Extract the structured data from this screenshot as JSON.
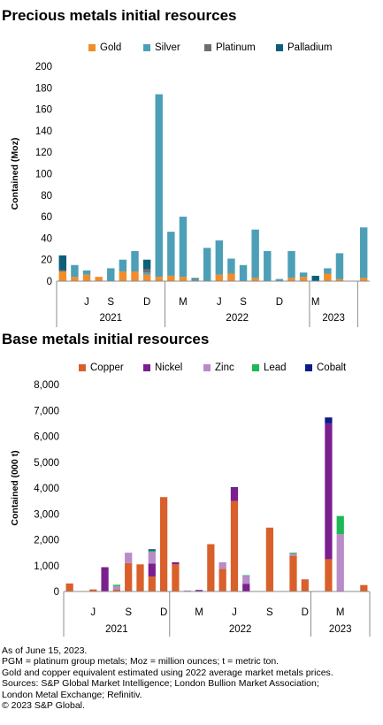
{
  "colors": {
    "Gold": "#F28C28",
    "Silver": "#4D9FB8",
    "Platinum": "#6E6E6E",
    "Palladium": "#0B5F7A",
    "Copper": "#D9602A",
    "Nickel": "#7B1E8E",
    "Zinc": "#B98BC8",
    "Lead": "#1DB954",
    "Cobalt": "#0A1C8A"
  },
  "chart_data": [
    {
      "type": "bar",
      "stacked": true,
      "title": "Precious metals initial resources",
      "ylabel": "Contained (Moz)",
      "xlabel": "",
      "ylim": [
        0,
        200
      ],
      "yticks": [
        "0",
        "20",
        "40",
        "60",
        "80",
        "100",
        "120",
        "140",
        "160",
        "180",
        "200"
      ],
      "grid": false,
      "legend_position": "top",
      "month_ticks": [
        {
          "label": "J",
          "index": 2
        },
        {
          "label": "S",
          "index": 4
        },
        {
          "label": "D",
          "index": 7
        },
        {
          "label": "M",
          "index": 10
        },
        {
          "label": "J",
          "index": 13
        },
        {
          "label": "S",
          "index": 15
        },
        {
          "label": "D",
          "index": 18
        },
        {
          "label": "M",
          "index": 21
        }
      ],
      "year_groups": [
        {
          "label": "2021",
          "start": 0,
          "end": 8
        },
        {
          "label": "2022",
          "start": 9,
          "end": 20
        },
        {
          "label": "2023",
          "start": 21,
          "end": 24
        }
      ],
      "categories": [
        "2021-04",
        "2021-05",
        "2021-06",
        "2021-07",
        "2021-08",
        "2021-09",
        "2021-10",
        "2021-11",
        "2021-12",
        "2022-01",
        "2022-02",
        "2022-03",
        "2022-04",
        "2022-05",
        "2022-06",
        "2022-07",
        "2022-08",
        "2022-09",
        "2022-10",
        "2022-11",
        "2022-12",
        "2023-01",
        "2023-02",
        "2023-03",
        "2023-04",
        "2023-05"
      ],
      "series": [
        {
          "name": "Gold",
          "values": [
            9,
            4,
            6,
            4,
            0,
            9,
            9,
            6,
            4,
            5,
            4,
            0,
            0,
            6,
            7,
            0,
            3,
            0,
            0,
            3,
            4,
            0,
            7,
            2,
            0,
            3
          ]
        },
        {
          "name": "Silver",
          "values": [
            0,
            11,
            4,
            0,
            12,
            11,
            19,
            2,
            170,
            41,
            56,
            2,
            31,
            32,
            14,
            15,
            45,
            28,
            2,
            25,
            4,
            0,
            5,
            24,
            0,
            47
          ]
        },
        {
          "name": "Platinum",
          "values": [
            1,
            0,
            0,
            0,
            0,
            0,
            0,
            3,
            0,
            0,
            0,
            1,
            0,
            0,
            0,
            0,
            0,
            0,
            0,
            0,
            0,
            0,
            0,
            0,
            0,
            0
          ]
        },
        {
          "name": "Palladium",
          "values": [
            14,
            0,
            0,
            0,
            0,
            0,
            0,
            9,
            0,
            0,
            0,
            0,
            0,
            0,
            0,
            0,
            0,
            0,
            0,
            0,
            0,
            5,
            0,
            0,
            0,
            0
          ]
        }
      ]
    },
    {
      "type": "bar",
      "stacked": true,
      "title": "Base metals initial resources",
      "ylabel": "Contained (000 t)",
      "xlabel": "",
      "ylim": [
        0,
        8000
      ],
      "yticks": [
        "0",
        "1,000",
        "2,000",
        "3,000",
        "4,000",
        "5,000",
        "6,000",
        "7,000",
        "8,000"
      ],
      "grid": false,
      "legend_position": "top",
      "month_ticks": [
        {
          "label": "J",
          "index": 2
        },
        {
          "label": "S",
          "index": 5
        },
        {
          "label": "D",
          "index": 8
        },
        {
          "label": "M",
          "index": 11
        },
        {
          "label": "J",
          "index": 14
        },
        {
          "label": "S",
          "index": 17
        },
        {
          "label": "D",
          "index": 20
        },
        {
          "label": "M",
          "index": 23
        }
      ],
      "year_groups": [
        {
          "label": "2021",
          "start": 0,
          "end": 8
        },
        {
          "label": "2022",
          "start": 9,
          "end": 20
        },
        {
          "label": "2023",
          "start": 21,
          "end": 25
        }
      ],
      "categories": [
        "2021-04",
        "2021-05",
        "2021-06",
        "2021-07",
        "2021-08",
        "2021-09",
        "2021-10",
        "2021-11",
        "2021-12",
        "2022-01",
        "2022-02",
        "2022-03",
        "2022-04",
        "2022-05",
        "2022-06",
        "2022-07",
        "2022-08",
        "2022-09",
        "2022-10",
        "2022-11",
        "2022-12",
        "2023-01",
        "2023-02",
        "2023-03",
        "2023-04",
        "2023-05"
      ],
      "series": [
        {
          "name": "Copper",
          "values": [
            310,
            0,
            80,
            0,
            80,
            1100,
            1050,
            580,
            3650,
            1050,
            0,
            0,
            1830,
            880,
            3500,
            0,
            0,
            2470,
            0,
            1380,
            470,
            0,
            1250,
            0,
            0,
            250
          ]
        },
        {
          "name": "Nickel",
          "values": [
            0,
            0,
            0,
            940,
            0,
            0,
            0,
            500,
            0,
            80,
            0,
            60,
            0,
            0,
            500,
            300,
            0,
            0,
            0,
            0,
            0,
            0,
            5250,
            0,
            0,
            0
          ]
        },
        {
          "name": "Zinc",
          "values": [
            0,
            0,
            0,
            0,
            130,
            400,
            0,
            450,
            0,
            0,
            40,
            0,
            0,
            250,
            0,
            300,
            0,
            0,
            0,
            80,
            0,
            0,
            0,
            2220,
            0,
            0
          ]
        },
        {
          "name": "Lead",
          "values": [
            0,
            0,
            0,
            0,
            50,
            0,
            0,
            60,
            0,
            0,
            0,
            0,
            0,
            0,
            0,
            30,
            0,
            0,
            0,
            40,
            0,
            0,
            0,
            700,
            0,
            0
          ]
        },
        {
          "name": "Cobalt",
          "values": [
            0,
            0,
            0,
            0,
            0,
            0,
            0,
            40,
            0,
            0,
            0,
            0,
            0,
            0,
            30,
            0,
            0,
            0,
            0,
            0,
            0,
            0,
            230,
            0,
            0,
            0
          ]
        }
      ]
    }
  ],
  "notes": [
    "As of June 15, 2023.",
    "PGM = platinum group metals; Moz = million ounces; t = metric ton.",
    "Gold and copper equivalent estimated using 2022 average market metals prices.",
    "Sources: S&P Global Market Intelligence; London Bullion Market Association;",
    "London Metal Exchange; Refinitiv.",
    "© 2023 S&P Global."
  ]
}
